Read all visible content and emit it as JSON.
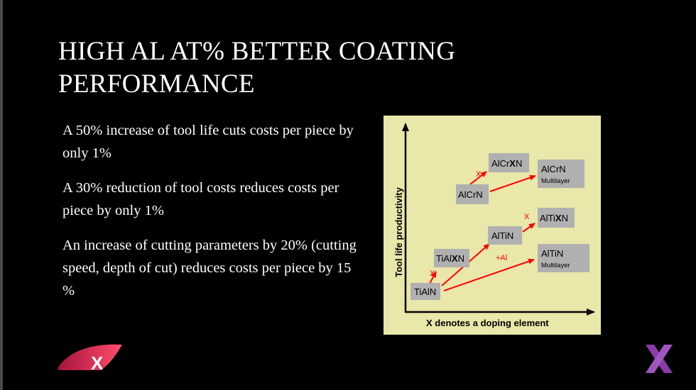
{
  "slide": {
    "title_line1": "HIGH AL AT% BETTER COATING",
    "title_line2": "PERFORMANCE"
  },
  "bullets": [
    "A 50% increase of tool life cuts costs per piece by only 1%",
    "A 30% reduction of tool costs reduces costs per piece by only 1%",
    "An increase of cutting parameters by 20% (cutting speed, depth of cut) reduces costs per piece by 15 %"
  ],
  "diagram": {
    "y_axis_label": "Tool life productivity",
    "x_axis_label": "X denotes a doping element",
    "boxes": {
      "tialn": "TiAlN",
      "tialxn_prefix": "TiAl",
      "tialxn_bold": "X",
      "tialxn_suffix": "N",
      "altin": "AlTiN",
      "altixn_prefix": "AlTi",
      "altixn_bold": "X",
      "altixn_suffix": "N",
      "altin_multi_main": "AlTiN",
      "altin_multi_sub": "Multilayer",
      "alcrn": "AlCrN",
      "alcrxn_prefix": "AlCr",
      "alcrxn_bold": "X",
      "alcrxn_suffix": "N",
      "alcrn_multi_main": "AlCrN",
      "alcrn_multi_sub": "Multilayer"
    },
    "arrow_labels": {
      "x_tialn": "X",
      "x_altin": "X",
      "x_alcrn": "X",
      "plus_al": "+Al"
    },
    "colors": {
      "background": "#e9e7a9",
      "box": "#b0b0b0",
      "arrow": "#ff0000"
    }
  },
  "logos": {
    "left": "x-logo-red",
    "right": "x-logo-purple"
  }
}
